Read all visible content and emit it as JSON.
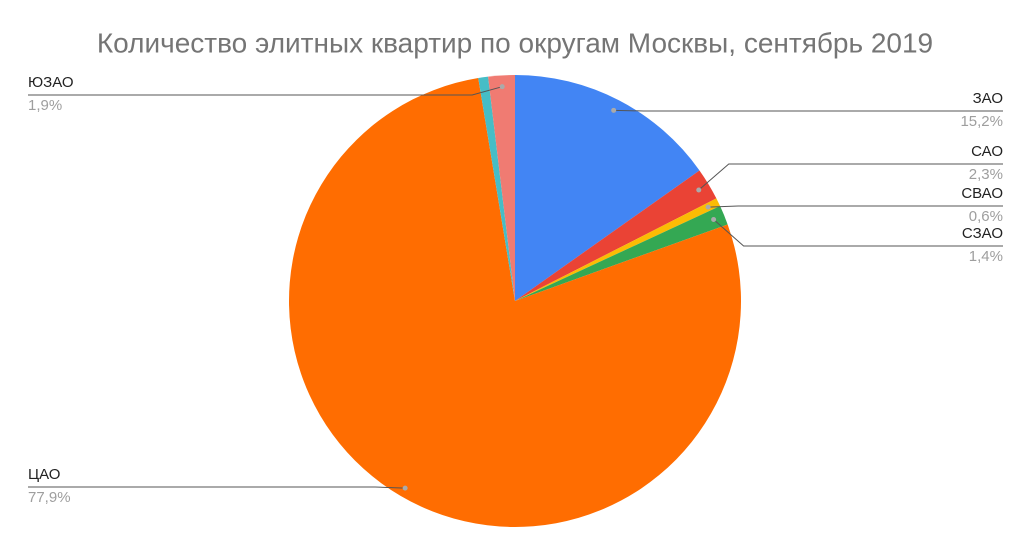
{
  "chart_data": {
    "type": "pie",
    "title": "Количество элитных квартир по округам Москвы, сентябрь 2019",
    "categories": [
      "ЗАО",
      "САО",
      "СВАО",
      "СЗАО",
      "ЦАО",
      null,
      "ЮЗАО"
    ],
    "values": [
      15.2,
      2.3,
      0.6,
      1.4,
      77.9,
      0.7,
      1.9
    ],
    "value_labels": [
      "15,2%",
      "2,3%",
      "0,6%",
      "1,4%",
      "77,9%",
      null,
      "1,9%"
    ],
    "colors": [
      "#4285f4",
      "#ea4335",
      "#fbbc04",
      "#34a853",
      "#ff6d01",
      "#46bdc6",
      "#f07b72"
    ]
  }
}
